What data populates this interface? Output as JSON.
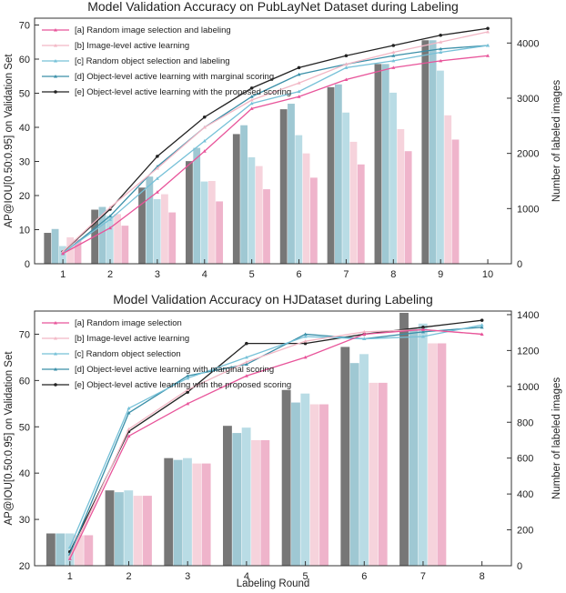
{
  "chart_data": [
    {
      "type": "bar+line",
      "title": "Model Validation Accuracy on PubLayNet Dataset during Labeling",
      "xlabel": "",
      "ylabel": "AP@IOU[0.50:0.95] on Validation Set",
      "y2label": "Number of labeled images",
      "categories": [
        "1",
        "2",
        "3",
        "4",
        "5",
        "6",
        "7",
        "8",
        "9",
        "10"
      ],
      "ylim": [
        0,
        72
      ],
      "yticks": [
        0,
        10,
        20,
        30,
        40,
        50,
        60,
        70
      ],
      "y2lim": [
        0,
        4450
      ],
      "y2ticks": [
        0,
        1000,
        2000,
        3000,
        4000
      ],
      "legend_position": "top-left",
      "series": [
        {
          "name": "[e] Object-level active learning with the proposed scoring",
          "color": "#222222",
          "marker": "dot",
          "values": [
            3.5,
            16.0,
            31.5,
            43.0,
            51.5,
            57.5,
            61.0,
            64.0,
            67.0,
            69.0
          ],
          "bars": [
            560,
            980,
            1380,
            1860,
            2350,
            2800,
            3200,
            3620,
            4050,
            null
          ]
        },
        {
          "name": "[d] Object-level active learning with marginal scoring",
          "color": "#3a8fa8",
          "marker": "tri",
          "values": [
            3.0,
            14.0,
            28.5,
            40.0,
            49.0,
            55.5,
            58.5,
            61.0,
            63.0,
            64.0
          ],
          "bars": [
            630,
            1030,
            1580,
            2100,
            2510,
            2900,
            3250,
            3620,
            4050,
            null
          ]
        },
        {
          "name": "[c] Random object selection and labeling",
          "color": "#76c1d8",
          "marker": "tri",
          "values": [
            3.2,
            13.0,
            25.0,
            36.0,
            47.0,
            50.5,
            57.5,
            59.5,
            62.0,
            64.0
          ],
          "bars": [
            320,
            870,
            1170,
            1490,
            1930,
            2330,
            2740,
            3100,
            3500,
            null
          ]
        },
        {
          "name": "[b] Image-level active learning",
          "color": "#f2b7c5",
          "marker": "tri",
          "values": [
            3.6,
            16.5,
            28.0,
            40.0,
            48.0,
            53.0,
            58.5,
            62.0,
            65.0,
            68.0
          ],
          "bars": [
            480,
            900,
            1260,
            1500,
            1770,
            2000,
            2210,
            2440,
            2690,
            null
          ]
        },
        {
          "name": "[a] Random image selection and labeling",
          "color": "#e8549a",
          "marker": "tri",
          "values": [
            3.0,
            10.5,
            21.0,
            33.0,
            45.5,
            49.0,
            54.0,
            57.5,
            59.5,
            61.0
          ],
          "bars": [
            440,
            690,
            930,
            1130,
            1350,
            1560,
            1800,
            2040,
            2250,
            null
          ]
        }
      ]
    },
    {
      "type": "bar+line",
      "title": "Model Validation Accuracy on HJDataset during Labeling",
      "xlabel": "Labeling Round",
      "ylabel": "AP@IOU[0.50:0.95] on Validation Set",
      "y2label": "Number of labeled images",
      "categories": [
        "1",
        "2",
        "3",
        "4",
        "5",
        "6",
        "7",
        "8"
      ],
      "ylim": [
        20,
        75
      ],
      "yticks": [
        20,
        30,
        40,
        50,
        60,
        70
      ],
      "y2lim": [
        0,
        1420
      ],
      "y2ticks": [
        0,
        200,
        400,
        600,
        800,
        1000,
        1200,
        1400
      ],
      "legend_position": "top-left",
      "series": [
        {
          "name": "[e] Object-level active learning with the proposed scoring",
          "color": "#222222",
          "marker": "dot",
          "values": [
            23.0,
            49.0,
            57.5,
            68.0,
            68.0,
            70.0,
            71.5,
            73.0
          ],
          "bars": [
            180,
            420,
            600,
            780,
            980,
            1220,
            1410,
            null
          ]
        },
        {
          "name": "[d] Object-level active learning with marginal scoring",
          "color": "#3a8fa8",
          "marker": "tri",
          "values": [
            22.5,
            53.0,
            61.0,
            63.5,
            70.0,
            69.0,
            70.5,
            71.5
          ],
          "bars": [
            180,
            410,
            590,
            740,
            910,
            1130,
            1320,
            null
          ]
        },
        {
          "name": "[c] Random object selection",
          "color": "#76c1d8",
          "marker": "tri",
          "values": [
            24.0,
            54.0,
            60.5,
            65.0,
            69.5,
            69.0,
            69.5,
            72.0
          ],
          "bars": [
            180,
            420,
            600,
            770,
            960,
            1180,
            1350,
            null
          ]
        },
        {
          "name": "[b] Image-level active learning",
          "color": "#f2b7c5",
          "marker": "tri",
          "values": [
            22.0,
            49.5,
            58.0,
            64.0,
            68.5,
            70.5,
            71.0,
            70.0
          ],
          "bars": [
            170,
            390,
            570,
            700,
            900,
            1020,
            1240,
            null
          ]
        },
        {
          "name": "[a] Random image selection",
          "color": "#e8549a",
          "marker": "tri",
          "values": [
            21.5,
            48.0,
            55.0,
            61.0,
            65.0,
            70.0,
            71.0,
            70.0
          ],
          "bars": [
            170,
            390,
            570,
            700,
            900,
            1020,
            1240,
            null
          ]
        }
      ]
    }
  ]
}
